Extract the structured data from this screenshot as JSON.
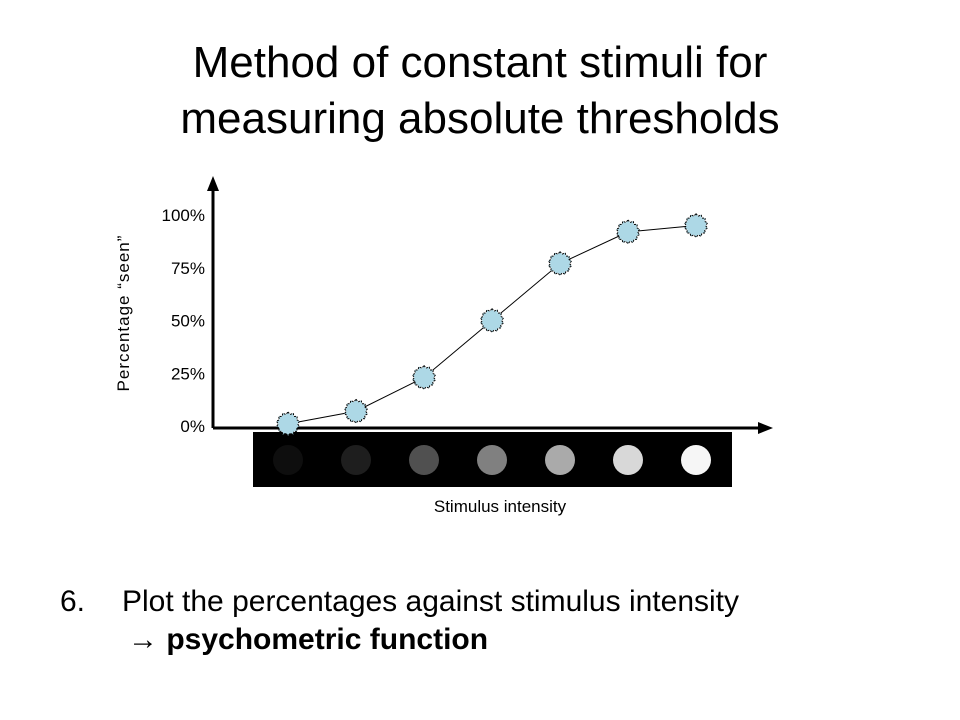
{
  "slide": {
    "title_line1": "Method of constant stimuli for",
    "title_line2": "measuring absolute thresholds",
    "step_number": "6.",
    "step_text": "Plot the percentages against stimulus intensity",
    "arrow_glyph": "→",
    "result_text": "psychometric function"
  },
  "chart_data": {
    "type": "line",
    "ylabel": "Percentage “seen”",
    "xlabel": "Stimulus intensity",
    "y_ticks": [
      "0%",
      "25%",
      "50%",
      "75%",
      "100%"
    ],
    "ylim": [
      0,
      100
    ],
    "x": [
      1,
      2,
      3,
      4,
      5,
      6,
      7
    ],
    "values": [
      1,
      7,
      23,
      50,
      77,
      92,
      95
    ],
    "marker_color": "#add8e6",
    "stimulus_swatch_colors": [
      "#0e0e0e",
      "#1e1e1e",
      "#505050",
      "#808080",
      "#aaaaaa",
      "#d8d8d8",
      "#f6f6f6"
    ],
    "stimulus_strip_background": "#000000",
    "grid": false
  }
}
